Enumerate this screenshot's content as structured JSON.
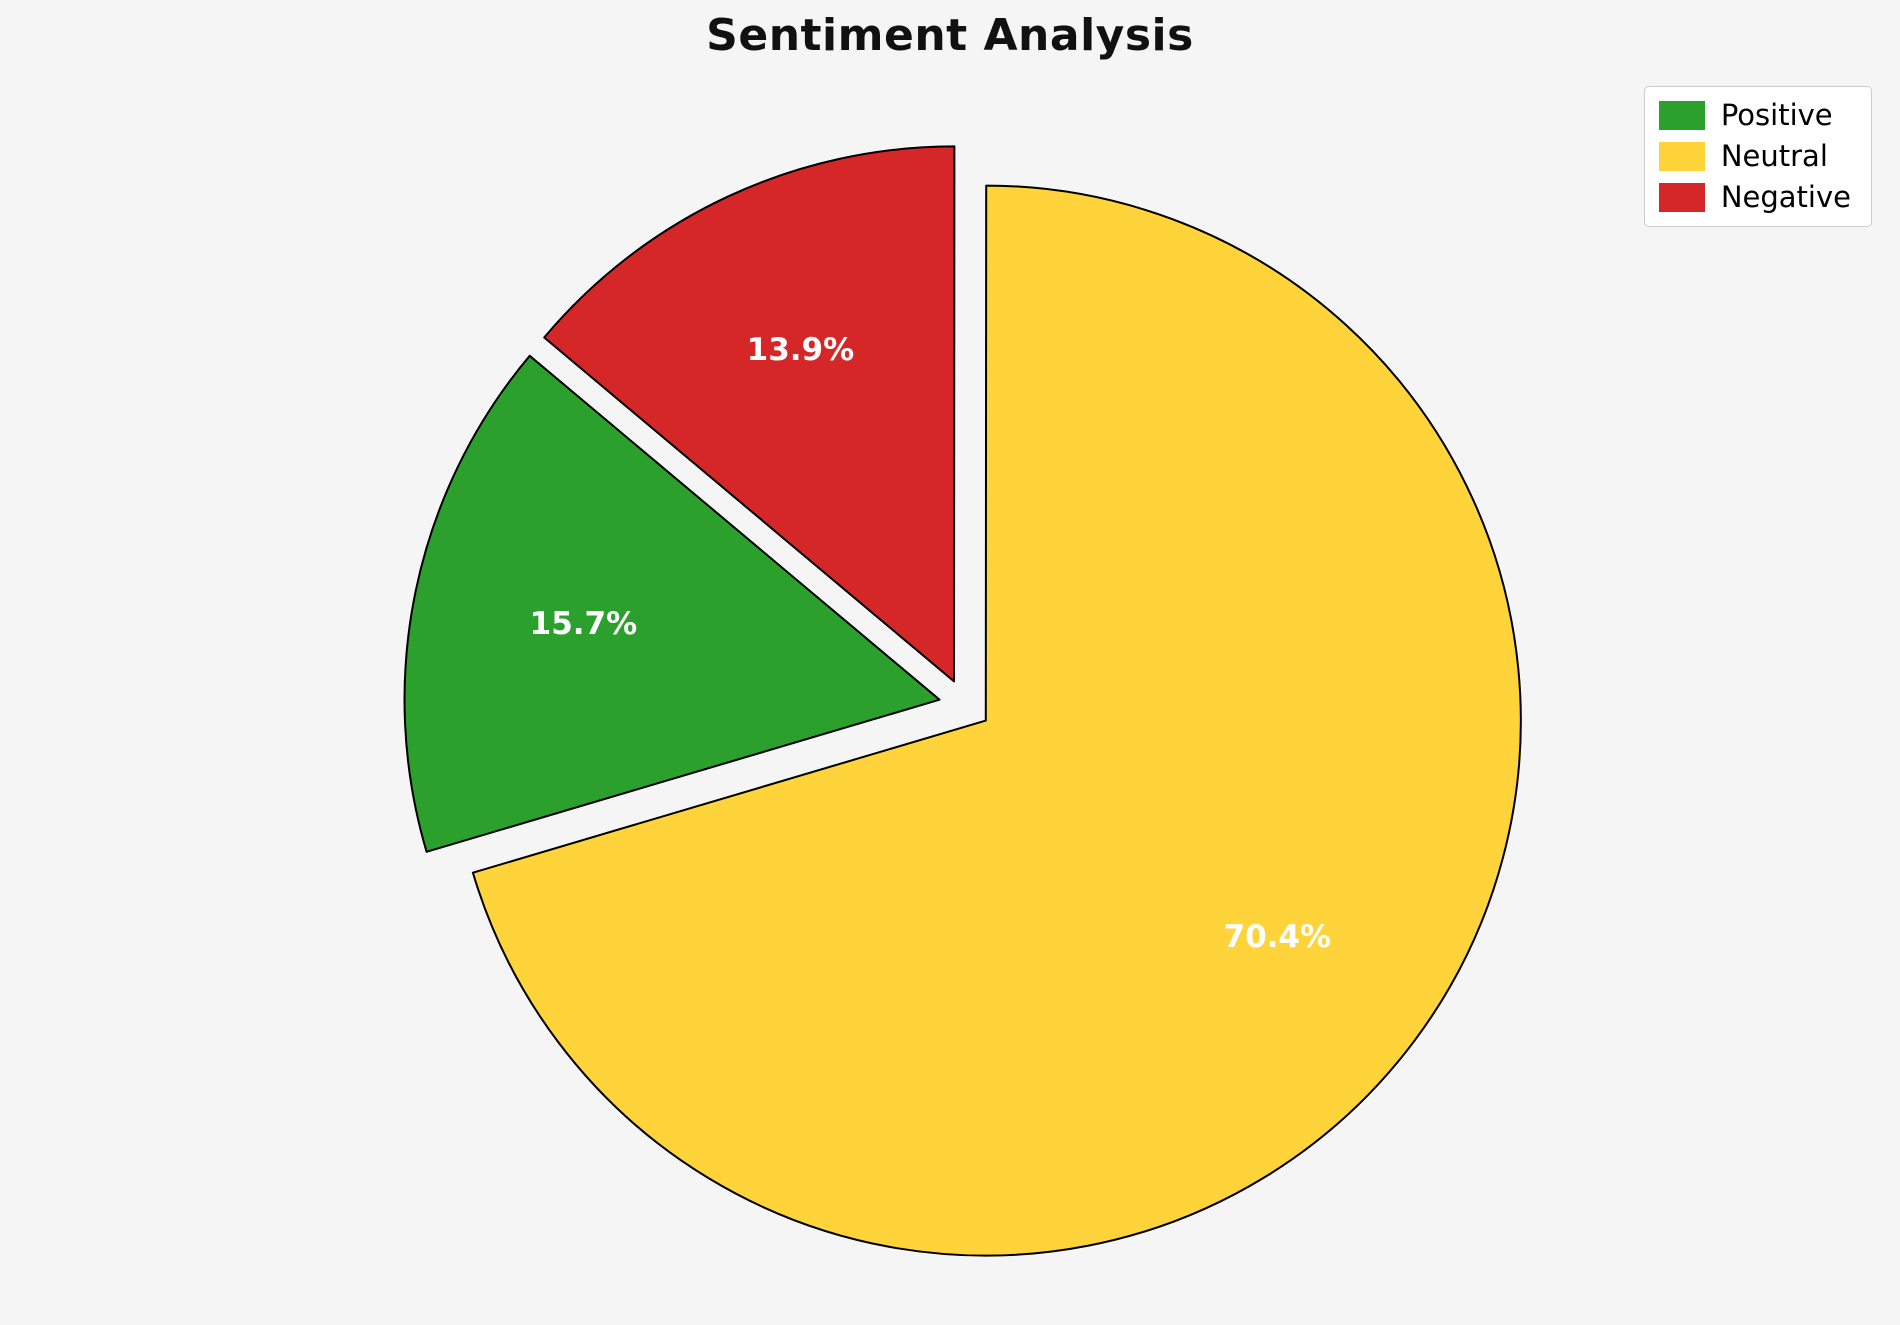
{
  "chart_data": {
    "type": "pie",
    "title": "Sentiment Analysis",
    "slices": [
      {
        "label": "Positive",
        "value": 15.7,
        "pct_text": "15.7%",
        "color": "#2CA02C"
      },
      {
        "label": "Neutral",
        "value": 70.4,
        "pct_text": "70.4%",
        "color": "#FFD43B"
      },
      {
        "label": "Negative",
        "value": 13.9,
        "pct_text": "13.9%",
        "color": "#D62728"
      }
    ],
    "legend": {
      "position": "upper right",
      "labels": [
        "Positive",
        "Neutral",
        "Negative"
      ]
    },
    "start_angle_deg": 140,
    "counterclockwise": true,
    "exploded": true,
    "value_label_color": "#FFFFFF",
    "edge_color": "#000000",
    "background_color": "#F5F5F5"
  }
}
